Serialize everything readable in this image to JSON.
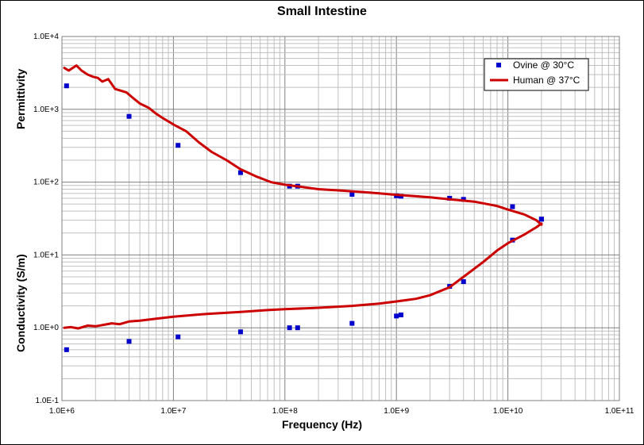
{
  "chart_data": {
    "type": "scatter",
    "title": "Small Intestine",
    "xlabel": "Frequency (Hz)",
    "ylabel_upper": "Permittivity",
    "ylabel_lower": "Conductivity (S/m)",
    "x_scale": "log",
    "y_scale": "log",
    "xlim": [
      1000000,
      100000000000
    ],
    "ylim": [
      0.1,
      10000
    ],
    "grid": true,
    "legend_position": "top-right",
    "x_ticks": [
      {
        "value": 1000000,
        "label": "1.0E+6"
      },
      {
        "value": 10000000,
        "label": "1.0E+7"
      },
      {
        "value": 100000000,
        "label": "1.0E+8"
      },
      {
        "value": 1000000000,
        "label": "1.0E+9"
      },
      {
        "value": 10000000000,
        "label": "1.0E+10"
      },
      {
        "value": 100000000000,
        "label": "1.0E+11"
      }
    ],
    "y_ticks": [
      {
        "value": 10000,
        "label": "1.0E+4"
      },
      {
        "value": 1000,
        "label": "1.0E+3"
      },
      {
        "value": 100,
        "label": "1.0E+2"
      },
      {
        "value": 10,
        "label": "1.0E+1"
      },
      {
        "value": 1,
        "label": "1.0E+0"
      },
      {
        "value": 0.1,
        "label": "1.0E-1"
      }
    ],
    "series": [
      {
        "name": "Ovine @ 30°C",
        "kind": "markers",
        "color": "#0000cc",
        "permittivity": {
          "x": [
            1100000,
            4000000,
            11000000,
            40000000,
            110000000,
            130000000,
            400000000,
            1000000000,
            1100000000,
            3000000000,
            4000000000,
            11000000000,
            20000000000
          ],
          "y": [
            2100,
            800,
            320,
            135,
            88,
            88,
            68,
            65,
            64,
            60,
            58,
            46,
            31
          ]
        },
        "conductivity": {
          "x": [
            1100000,
            4000000,
            11000000,
            40000000,
            110000000,
            130000000,
            400000000,
            1000000000,
            1100000000,
            3000000000,
            4000000000,
            11000000000,
            20000000000
          ],
          "y": [
            0.5,
            0.65,
            0.75,
            0.88,
            1.0,
            1.0,
            1.15,
            1.45,
            1.5,
            3.7,
            4.3,
            16,
            31
          ]
        }
      },
      {
        "name": "Human @ 37°C",
        "kind": "line",
        "color": "#cc0000",
        "permittivity": {
          "x": [
            1050000,
            1150000,
            1250000,
            1350000,
            1500000,
            1700000,
            1900000,
            2100000,
            2300000,
            2600000,
            3000000,
            3400000,
            3800000,
            4300000,
            5000000,
            6000000,
            7000000,
            8000000,
            10000000,
            13000000,
            17000000,
            22000000,
            30000000,
            40000000,
            55000000,
            75000000,
            100000000,
            150000000,
            200000000,
            300000000,
            500000000,
            700000000,
            1000000000,
            1500000000,
            2000000000,
            3000000000,
            5000000000,
            8000000000,
            10000000000,
            14000000000,
            18000000000,
            20000000000
          ],
          "y": [
            3700,
            3400,
            3700,
            4000,
            3400,
            3000,
            2800,
            2700,
            2400,
            2600,
            1900,
            1800,
            1700,
            1450,
            1200,
            1050,
            870,
            760,
            620,
            500,
            350,
            260,
            200,
            150,
            120,
            100,
            92,
            85,
            80,
            77,
            73,
            70,
            67,
            64,
            62,
            58,
            54,
            47,
            42,
            36,
            30,
            26
          ]
        },
        "conductivity": {
          "x": [
            1050000,
            1200000,
            1400000,
            1700000,
            2000000,
            2400000,
            2800000,
            3300000,
            4000000,
            5000000,
            7000000,
            10000000,
            20000000,
            40000000,
            70000000,
            100000000,
            200000000,
            400000000,
            700000000,
            1000000000,
            1500000000,
            2000000000,
            3000000000,
            4000000000,
            6000000000,
            8000000000,
            10000000000,
            14000000000,
            18000000000,
            20000000000
          ],
          "y": [
            1.0,
            1.02,
            0.98,
            1.07,
            1.05,
            1.1,
            1.15,
            1.12,
            1.22,
            1.25,
            1.33,
            1.42,
            1.55,
            1.65,
            1.75,
            1.8,
            1.88,
            2.0,
            2.15,
            2.3,
            2.5,
            2.8,
            3.6,
            5.0,
            8.0,
            11.5,
            14.5,
            19,
            24,
            27
          ]
        }
      }
    ]
  }
}
